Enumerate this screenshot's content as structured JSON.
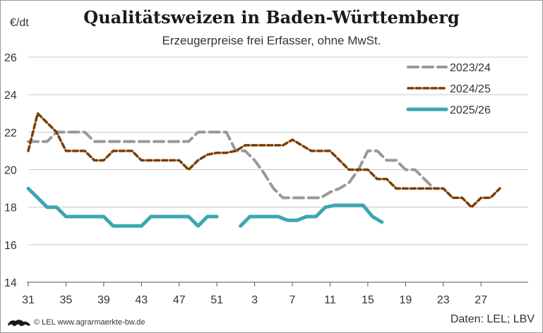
{
  "chart_data": {
    "type": "line",
    "title": "Qualitätsweizen in Baden-Württemberg",
    "subtitle": "Erzeugerpreise frei Erfasser, ohne MwSt.",
    "ylabel": "€/dt",
    "ylim": [
      14,
      26
    ],
    "yticks": [
      14,
      16,
      18,
      20,
      22,
      24,
      26
    ],
    "xlim": [
      0,
      53
    ],
    "xticks": [
      {
        "pos": 0,
        "label": "31"
      },
      {
        "pos": 4,
        "label": "35"
      },
      {
        "pos": 8,
        "label": "39"
      },
      {
        "pos": 12,
        "label": "43"
      },
      {
        "pos": 16,
        "label": "47"
      },
      {
        "pos": 20,
        "label": "51"
      },
      {
        "pos": 24,
        "label": "3"
      },
      {
        "pos": 28,
        "label": "7"
      },
      {
        "pos": 32,
        "label": "11"
      },
      {
        "pos": 36,
        "label": "15"
      },
      {
        "pos": 40,
        "label": "19"
      },
      {
        "pos": 44,
        "label": "23"
      },
      {
        "pos": 48,
        "label": "27"
      }
    ],
    "grid": "horizontal",
    "legend_position": "top-right",
    "series": [
      {
        "name": "2023/24",
        "color": "#999999",
        "style": "dashed",
        "points": [
          [
            0,
            21.5
          ],
          [
            1,
            21.5
          ],
          [
            2,
            21.5
          ],
          [
            3,
            22
          ],
          [
            4,
            22
          ],
          [
            5,
            22
          ],
          [
            6,
            22
          ],
          [
            7,
            21.5
          ],
          [
            8,
            21.5
          ],
          [
            9,
            21.5
          ],
          [
            10,
            21.5
          ],
          [
            11,
            21.5
          ],
          [
            12,
            21.5
          ],
          [
            13,
            21.5
          ],
          [
            14,
            21.5
          ],
          [
            15,
            21.5
          ],
          [
            16,
            21.5
          ],
          [
            17,
            21.5
          ],
          [
            18,
            22
          ],
          [
            19,
            22
          ],
          [
            20,
            22
          ],
          [
            21,
            22
          ],
          [
            22,
            21
          ],
          [
            23,
            21
          ],
          [
            24,
            20.5
          ],
          [
            25,
            19.8
          ],
          [
            26,
            19
          ],
          [
            27,
            18.5
          ],
          [
            28,
            18.5
          ],
          [
            29,
            18.5
          ],
          [
            30,
            18.5
          ],
          [
            31,
            18.5
          ],
          [
            32,
            18.8
          ],
          [
            33,
            19
          ],
          [
            34,
            19.3
          ],
          [
            35,
            20
          ],
          [
            36,
            21
          ],
          [
            37,
            21
          ],
          [
            38,
            20.5
          ],
          [
            39,
            20.5
          ],
          [
            40,
            20
          ],
          [
            41,
            20
          ],
          [
            42,
            19.5
          ],
          [
            43,
            19
          ]
        ]
      },
      {
        "name": "2024/25",
        "color": "#7a3e00",
        "style": "dotted",
        "points": [
          [
            0,
            21
          ],
          [
            1,
            23
          ],
          [
            2,
            22.5
          ],
          [
            3,
            22
          ],
          [
            4,
            21
          ],
          [
            5,
            21
          ],
          [
            6,
            21
          ],
          [
            7,
            20.5
          ],
          [
            8,
            20.5
          ],
          [
            9,
            21
          ],
          [
            10,
            21
          ],
          [
            11,
            21
          ],
          [
            12,
            20.5
          ],
          [
            13,
            20.5
          ],
          [
            14,
            20.5
          ],
          [
            15,
            20.5
          ],
          [
            16,
            20.5
          ],
          [
            17,
            20
          ],
          [
            18,
            20.5
          ],
          [
            19,
            20.8
          ],
          [
            20,
            20.9
          ],
          [
            21,
            20.9
          ],
          [
            22,
            21
          ],
          [
            23,
            21.3
          ],
          [
            24,
            21.3
          ],
          [
            25,
            21.3
          ],
          [
            26,
            21.3
          ],
          [
            27,
            21.3
          ],
          [
            28,
            21.6
          ],
          [
            29,
            21.3
          ],
          [
            30,
            21
          ],
          [
            31,
            21
          ],
          [
            32,
            21
          ],
          [
            33,
            20.5
          ],
          [
            34,
            20
          ],
          [
            35,
            20
          ],
          [
            36,
            20
          ],
          [
            37,
            19.5
          ],
          [
            38,
            19.5
          ],
          [
            39,
            19
          ],
          [
            40,
            19
          ],
          [
            41,
            19
          ],
          [
            42,
            19
          ],
          [
            43,
            19
          ],
          [
            44,
            19
          ],
          [
            45,
            18.5
          ],
          [
            46,
            18.5
          ],
          [
            47,
            18
          ],
          [
            48,
            18.5
          ],
          [
            49,
            18.5
          ],
          [
            50,
            19
          ]
        ]
      },
      {
        "name": "2025/26",
        "color": "#3aa7b2",
        "style": "solid",
        "segments": [
          [
            [
              0,
              19
            ],
            [
              1,
              18.5
            ],
            [
              2,
              18
            ],
            [
              3,
              18
            ],
            [
              4,
              17.5
            ],
            [
              5,
              17.5
            ],
            [
              6,
              17.5
            ],
            [
              7,
              17.5
            ],
            [
              8,
              17.5
            ],
            [
              9,
              17
            ],
            [
              10,
              17
            ],
            [
              11,
              17
            ],
            [
              12,
              17
            ],
            [
              13,
              17.5
            ],
            [
              14,
              17.5
            ],
            [
              15,
              17.5
            ],
            [
              16,
              17.5
            ],
            [
              17,
              17.5
            ],
            [
              18,
              17
            ],
            [
              19,
              17.5
            ],
            [
              20,
              17.5
            ]
          ],
          [
            [
              22.5,
              17
            ],
            [
              23.5,
              17.5
            ],
            [
              24.5,
              17.5
            ],
            [
              25.5,
              17.5
            ],
            [
              26.5,
              17.5
            ],
            [
              27.5,
              17.3
            ],
            [
              28.5,
              17.3
            ],
            [
              29.5,
              17.5
            ],
            [
              30.5,
              17.5
            ],
            [
              31.5,
              18
            ],
            [
              32.5,
              18.1
            ],
            [
              33.5,
              18.1
            ],
            [
              34.5,
              18.1
            ],
            [
              35.5,
              18.1
            ],
            [
              36.5,
              17.5
            ],
            [
              37.5,
              17.2
            ]
          ]
        ]
      }
    ]
  },
  "footer": {
    "copyright": "© LEL www.agrarmaerkte-bw.de",
    "source": "Daten: LEL; LBV"
  }
}
